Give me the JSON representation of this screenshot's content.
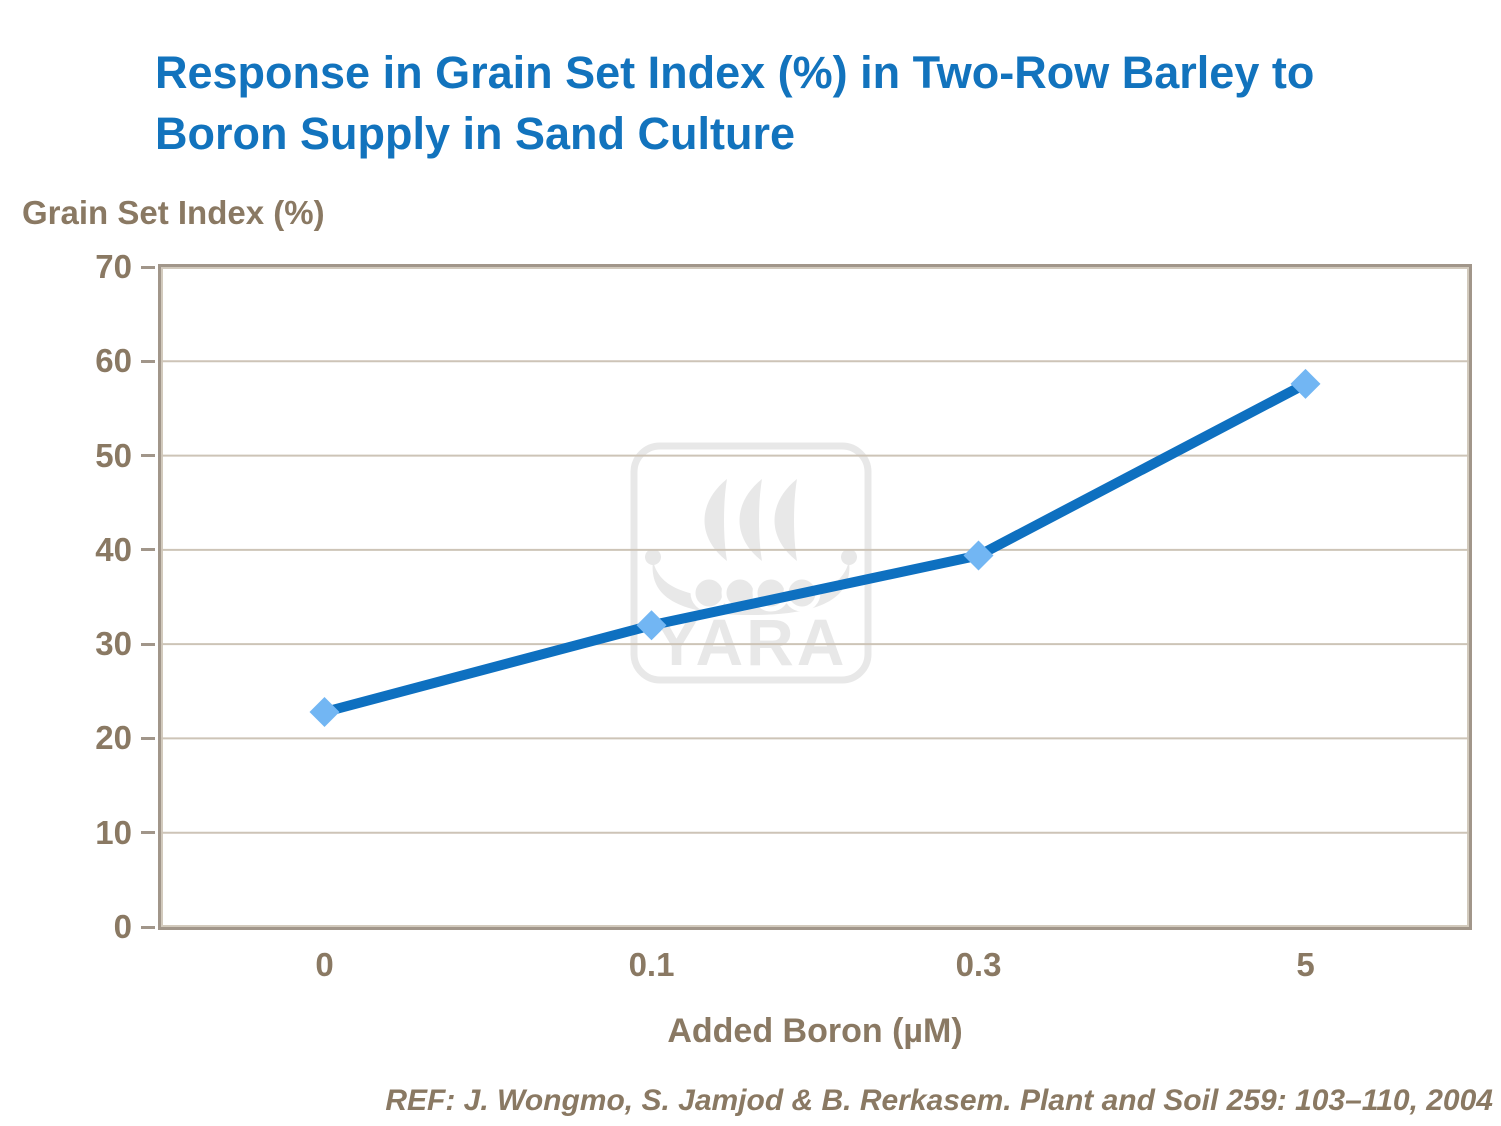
{
  "title": {
    "text": "Response in Grain Set Index (%) in Two-Row Barley to Boron Supply in Sand Culture",
    "lines": [
      "Response in Grain Set Index (%) in Two-Row Barley to",
      "Boron Supply in Sand Culture"
    ],
    "color": "#1273BD"
  },
  "watermark": {
    "label": "YARA",
    "color": "#E8E8E8"
  },
  "reference": {
    "text": "REF: J. Wongmo, S. Jamjod & B. Rerkasem. Plant and Soil 259: 103–110, 2004"
  },
  "chart_data": {
    "type": "line",
    "title": "Response in Grain Set Index (%) in Two-Row Barley to Boron Supply in Sand Culture",
    "categories": [
      "0",
      "0.1",
      "0.3",
      "5"
    ],
    "series": [
      {
        "name": "Grain Set Index (%)",
        "values": [
          22.8,
          32.0,
          39.4,
          57.6
        ]
      }
    ],
    "xlabel": "Added Boron (µM)",
    "ylabel": "Grain Set Index (%)",
    "ylim": [
      0,
      70
    ],
    "yticks": [
      0,
      10,
      20,
      30,
      40,
      50,
      60,
      70
    ],
    "grid": true,
    "legend": false,
    "marker": "diamond",
    "colors": {
      "line": "#0E70C0",
      "marker": "#72B6F3",
      "axis_text": "#8A7963",
      "gridline": "#CDC4B7",
      "frame": "#A1968A",
      "frame_highlight": "#D2CABD",
      "title": "#1273BD",
      "watermark": "#E8E8E8"
    }
  }
}
